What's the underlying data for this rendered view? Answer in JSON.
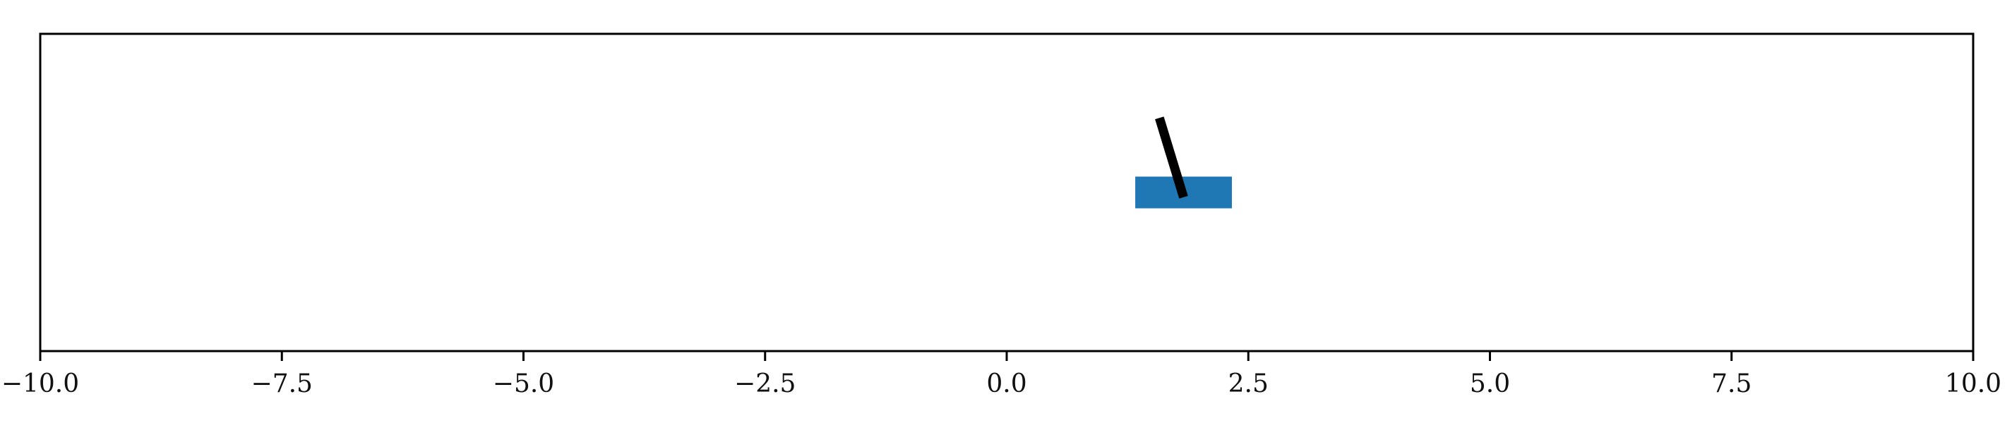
{
  "chart_data": {
    "type": "scatter",
    "title": "",
    "xlabel": "",
    "ylabel": "",
    "xlim": [
      -10.0,
      10.0
    ],
    "ylim": [
      -1.0,
      1.0
    ],
    "grid": false,
    "x_tick_values": [
      -10.0,
      -7.5,
      -5.0,
      -2.5,
      0.0,
      2.5,
      5.0,
      7.5,
      10.0
    ],
    "x_tick_labels": [
      "−10.0",
      "−7.5",
      "−5.0",
      "−2.5",
      "0.0",
      "2.5",
      "5.0",
      "7.5",
      "10.0"
    ],
    "cart": {
      "x_center": 1.83,
      "y_center": 0.0,
      "width": 1.0,
      "height": 0.2,
      "color": "#1f77b4"
    },
    "pole": {
      "base_x": 1.83,
      "base_y": -0.03,
      "tip_x": 1.58,
      "tip_y": 0.47,
      "color": "#000000"
    }
  }
}
